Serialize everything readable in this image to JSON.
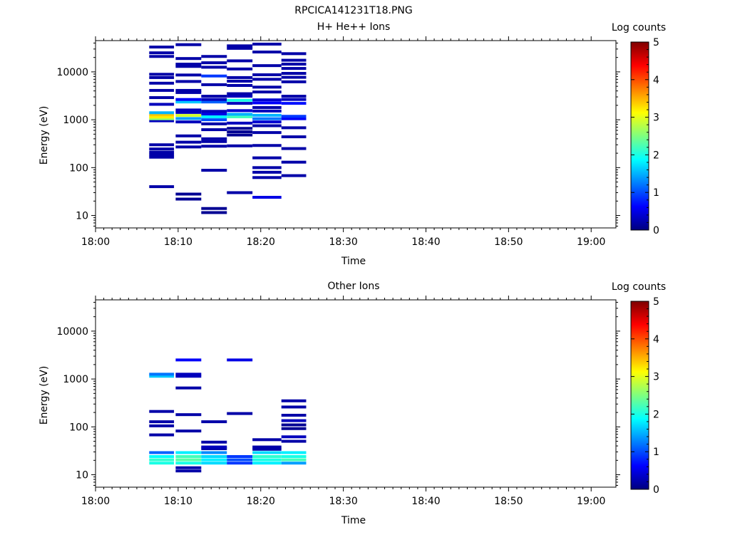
{
  "figure_title": "RPCICA141231T18.PNG",
  "colormap_stops": [
    "#00007f",
    "#0000ff",
    "#007fff",
    "#00ffff",
    "#7fff7f",
    "#ffff00",
    "#ff7f00",
    "#ff0000",
    "#7f0000"
  ],
  "chart_data": [
    {
      "type": "heatmap",
      "title": "H+ He++ Ions",
      "xlabel": "Time",
      "ylabel": "Energy (eV)",
      "x_ticks": [
        "18:00",
        "18:10",
        "18:20",
        "18:30",
        "18:40",
        "18:50",
        "19:00"
      ],
      "x_range_minutes": [
        0,
        63
      ],
      "y_scale": "log",
      "y_ticks": [
        "10",
        "100",
        "1000",
        "10000"
      ],
      "y_range": [
        5.5,
        45000
      ],
      "colorbar_label": "Log counts",
      "colorbar_ticks": [
        "0",
        "1",
        "2",
        "3",
        "4",
        "5"
      ],
      "colorbar_range": [
        0,
        5
      ],
      "columns": [
        {
          "t0": 6.5,
          "t1": 9.5,
          "cells": [
            {
              "e": 40,
              "v": 0.2
            },
            {
              "e": 165,
              "v": 0.2
            },
            {
              "e": 185,
              "v": 0.2
            },
            {
              "e": 210,
              "v": 0.2
            },
            {
              "e": 245,
              "v": 0.2
            },
            {
              "e": 300,
              "v": 0.2
            },
            {
              "e": 950,
              "v": 0.3
            },
            {
              "e": 1050,
              "v": 2.6
            },
            {
              "e": 1140,
              "v": 3.2
            },
            {
              "e": 1270,
              "v": 3.4
            },
            {
              "e": 1400,
              "v": 1.5
            },
            {
              "e": 2100,
              "v": 0.3
            },
            {
              "e": 2900,
              "v": 0.2
            },
            {
              "e": 4100,
              "v": 0.2
            },
            {
              "e": 5800,
              "v": 0.2
            },
            {
              "e": 7600,
              "v": 0.2
            },
            {
              "e": 8900,
              "v": 0.2
            },
            {
              "e": 21000,
              "v": 0.2
            },
            {
              "e": 25000,
              "v": 0.2
            },
            {
              "e": 33000,
              "v": 0.2
            }
          ]
        },
        {
          "t0": 9.7,
          "t1": 12.8,
          "cells": [
            {
              "e": 22,
              "v": 0.1
            },
            {
              "e": 28,
              "v": 0.1
            },
            {
              "e": 270,
              "v": 0.2
            },
            {
              "e": 340,
              "v": 0.2
            },
            {
              "e": 460,
              "v": 0.2
            },
            {
              "e": 900,
              "v": 0.3
            },
            {
              "e": 1060,
              "v": 1.4
            },
            {
              "e": 1230,
              "v": 2.9
            },
            {
              "e": 1420,
              "v": 0.3
            },
            {
              "e": 1600,
              "v": 0.3
            },
            {
              "e": 2350,
              "v": 1.6
            },
            {
              "e": 2650,
              "v": 0.6
            },
            {
              "e": 3700,
              "v": 0.2
            },
            {
              "e": 4100,
              "v": 0.2
            },
            {
              "e": 6300,
              "v": 0.2
            },
            {
              "e": 8600,
              "v": 0.2
            },
            {
              "e": 13000,
              "v": 0.2
            },
            {
              "e": 14500,
              "v": 0.2
            },
            {
              "e": 19000,
              "v": 0.2
            },
            {
              "e": 37000,
              "v": 0.2
            }
          ]
        },
        {
          "t0": 12.8,
          "t1": 15.9,
          "cells": [
            {
              "e": 11.5,
              "v": 0.1
            },
            {
              "e": 14,
              "v": 0.1
            },
            {
              "e": 88,
              "v": 0.2
            },
            {
              "e": 280,
              "v": 0.2
            },
            {
              "e": 350,
              "v": 0.2
            },
            {
              "e": 400,
              "v": 0.2
            },
            {
              "e": 620,
              "v": 0.2
            },
            {
              "e": 820,
              "v": 0.2
            },
            {
              "e": 1000,
              "v": 1.0
            },
            {
              "e": 1150,
              "v": 1.8
            },
            {
              "e": 1320,
              "v": 0.5
            },
            {
              "e": 1500,
              "v": 0.3
            },
            {
              "e": 2350,
              "v": 1.1
            },
            {
              "e": 2650,
              "v": 0.3
            },
            {
              "e": 3100,
              "v": 0.2
            },
            {
              "e": 5400,
              "v": 0.2
            },
            {
              "e": 8200,
              "v": 0.9
            },
            {
              "e": 12500,
              "v": 0.2
            },
            {
              "e": 15500,
              "v": 0.2
            },
            {
              "e": 21000,
              "v": 0.2
            }
          ]
        },
        {
          "t0": 15.9,
          "t1": 19.0,
          "cells": [
            {
              "e": 30,
              "v": 0.2
            },
            {
              "e": 285,
              "v": 0.2
            },
            {
              "e": 480,
              "v": 0.1
            },
            {
              "e": 560,
              "v": 0.1
            },
            {
              "e": 660,
              "v": 0.1
            },
            {
              "e": 850,
              "v": 0.3
            },
            {
              "e": 1150,
              "v": 2.2
            },
            {
              "e": 1300,
              "v": 1.5
            },
            {
              "e": 1550,
              "v": 0.4
            },
            {
              "e": 2200,
              "v": 0.3
            },
            {
              "e": 2550,
              "v": 2.0
            },
            {
              "e": 3100,
              "v": 0.3
            },
            {
              "e": 3500,
              "v": 0.2
            },
            {
              "e": 5200,
              "v": 0.2
            },
            {
              "e": 6400,
              "v": 0.2
            },
            {
              "e": 7600,
              "v": 0.2
            },
            {
              "e": 11500,
              "v": 0.2
            },
            {
              "e": 17000,
              "v": 0.2
            },
            {
              "e": 31000,
              "v": 0.2
            },
            {
              "e": 35000,
              "v": 0.2
            }
          ]
        },
        {
          "t0": 19.0,
          "t1": 22.5,
          "cells": [
            {
              "e": 24,
              "v": 0.5
            },
            {
              "e": 62,
              "v": 0.2
            },
            {
              "e": 80,
              "v": 0.2
            },
            {
              "e": 100,
              "v": 0.2
            },
            {
              "e": 160,
              "v": 0.2
            },
            {
              "e": 290,
              "v": 0.2
            },
            {
              "e": 540,
              "v": 0.2
            },
            {
              "e": 750,
              "v": 0.2
            },
            {
              "e": 900,
              "v": 0.4
            },
            {
              "e": 1050,
              "v": 1.2
            },
            {
              "e": 1240,
              "v": 1.5
            },
            {
              "e": 1520,
              "v": 0.3
            },
            {
              "e": 1800,
              "v": 0.2
            },
            {
              "e": 2250,
              "v": 0.6
            },
            {
              "e": 2600,
              "v": 0.4
            },
            {
              "e": 3800,
              "v": 0.2
            },
            {
              "e": 4800,
              "v": 0.2
            },
            {
              "e": 7000,
              "v": 0.2
            },
            {
              "e": 8700,
              "v": 0.2
            },
            {
              "e": 13500,
              "v": 0.2
            },
            {
              "e": 26000,
              "v": 0.2
            },
            {
              "e": 38000,
              "v": 0.2
            }
          ]
        },
        {
          "t0": 22.5,
          "t1": 25.5,
          "cells": [
            {
              "e": 68,
              "v": 0.2
            },
            {
              "e": 130,
              "v": 0.2
            },
            {
              "e": 250,
              "v": 0.2
            },
            {
              "e": 440,
              "v": 0.2
            },
            {
              "e": 680,
              "v": 0.2
            },
            {
              "e": 1050,
              "v": 0.6
            },
            {
              "e": 1180,
              "v": 0.9
            },
            {
              "e": 2200,
              "v": 0.7
            },
            {
              "e": 2650,
              "v": 0.3
            },
            {
              "e": 3100,
              "v": 0.2
            },
            {
              "e": 6200,
              "v": 0.2
            },
            {
              "e": 7700,
              "v": 0.2
            },
            {
              "e": 9300,
              "v": 0.2
            },
            {
              "e": 11800,
              "v": 0.2
            },
            {
              "e": 14500,
              "v": 0.2
            },
            {
              "e": 17500,
              "v": 0.2
            },
            {
              "e": 24000,
              "v": 0.2
            }
          ]
        }
      ]
    },
    {
      "type": "heatmap",
      "title": "Other Ions",
      "xlabel": "Time",
      "ylabel": "Energy (eV)",
      "x_ticks": [
        "18:00",
        "18:10",
        "18:20",
        "18:30",
        "18:40",
        "18:50",
        "19:00"
      ],
      "x_range_minutes": [
        0,
        63
      ],
      "y_scale": "log",
      "y_ticks": [
        "10",
        "100",
        "1000",
        "10000"
      ],
      "y_range": [
        5.5,
        45000
      ],
      "colorbar_label": "Log counts",
      "colorbar_ticks": [
        "0",
        "1",
        "2",
        "3",
        "4",
        "5"
      ],
      "colorbar_range": [
        0,
        5
      ],
      "columns": [
        {
          "t0": 6.5,
          "t1": 9.5,
          "cells": [
            {
              "e": 17.5,
              "v": 2.0
            },
            {
              "e": 20.5,
              "v": 2.1
            },
            {
              "e": 24,
              "v": 1.9
            },
            {
              "e": 29,
              "v": 1.1
            },
            {
              "e": 68,
              "v": 0.2
            },
            {
              "e": 105,
              "v": 0.2
            },
            {
              "e": 128,
              "v": 0.2
            },
            {
              "e": 210,
              "v": 0.2
            },
            {
              "e": 1140,
              "v": 1.6
            },
            {
              "e": 1260,
              "v": 1.2
            }
          ]
        },
        {
          "t0": 9.7,
          "t1": 12.8,
          "cells": [
            {
              "e": 12,
              "v": 0.2
            },
            {
              "e": 14,
              "v": 0.2
            },
            {
              "e": 17.5,
              "v": 2.0
            },
            {
              "e": 20.5,
              "v": 2.3
            },
            {
              "e": 24,
              "v": 2.2
            },
            {
              "e": 29,
              "v": 1.8
            },
            {
              "e": 82,
              "v": 0.2
            },
            {
              "e": 180,
              "v": 0.2
            },
            {
              "e": 650,
              "v": 0.2
            },
            {
              "e": 1140,
              "v": 0.3
            },
            {
              "e": 1260,
              "v": 0.3
            },
            {
              "e": 2500,
              "v": 0.6
            }
          ]
        },
        {
          "t0": 12.8,
          "t1": 15.9,
          "cells": [
            {
              "e": 17.5,
              "v": 1.7
            },
            {
              "e": 20.5,
              "v": 1.8
            },
            {
              "e": 24,
              "v": 1.7
            },
            {
              "e": 29,
              "v": 1.3
            },
            {
              "e": 35,
              "v": 0.2
            },
            {
              "e": 38,
              "v": 0.3
            },
            {
              "e": 48,
              "v": 0.2
            },
            {
              "e": 128,
              "v": 0.2
            }
          ]
        },
        {
          "t0": 15.9,
          "t1": 19.0,
          "cells": [
            {
              "e": 17.5,
              "v": 0.9
            },
            {
              "e": 20.5,
              "v": 1.0
            },
            {
              "e": 24,
              "v": 0.9
            },
            {
              "e": 190,
              "v": 0.2
            },
            {
              "e": 2500,
              "v": 0.5
            }
          ]
        },
        {
          "t0": 19.0,
          "t1": 22.5,
          "cells": [
            {
              "e": 17.5,
              "v": 1.8
            },
            {
              "e": 20.5,
              "v": 2.0
            },
            {
              "e": 24,
              "v": 2.1
            },
            {
              "e": 29,
              "v": 1.7
            },
            {
              "e": 34,
              "v": 0.2
            },
            {
              "e": 38,
              "v": 0.2
            },
            {
              "e": 54,
              "v": 0.2
            }
          ]
        },
        {
          "t0": 22.5,
          "t1": 25.5,
          "cells": [
            {
              "e": 17.5,
              "v": 1.4
            },
            {
              "e": 20.5,
              "v": 2.2
            },
            {
              "e": 24,
              "v": 2.0
            },
            {
              "e": 29,
              "v": 1.8
            },
            {
              "e": 50,
              "v": 0.2
            },
            {
              "e": 62,
              "v": 0.3
            },
            {
              "e": 92,
              "v": 0.1
            },
            {
              "e": 110,
              "v": 0.1
            },
            {
              "e": 135,
              "v": 0.3
            },
            {
              "e": 175,
              "v": 0.2
            },
            {
              "e": 260,
              "v": 0.2
            },
            {
              "e": 350,
              "v": 0.2
            }
          ]
        }
      ]
    }
  ]
}
